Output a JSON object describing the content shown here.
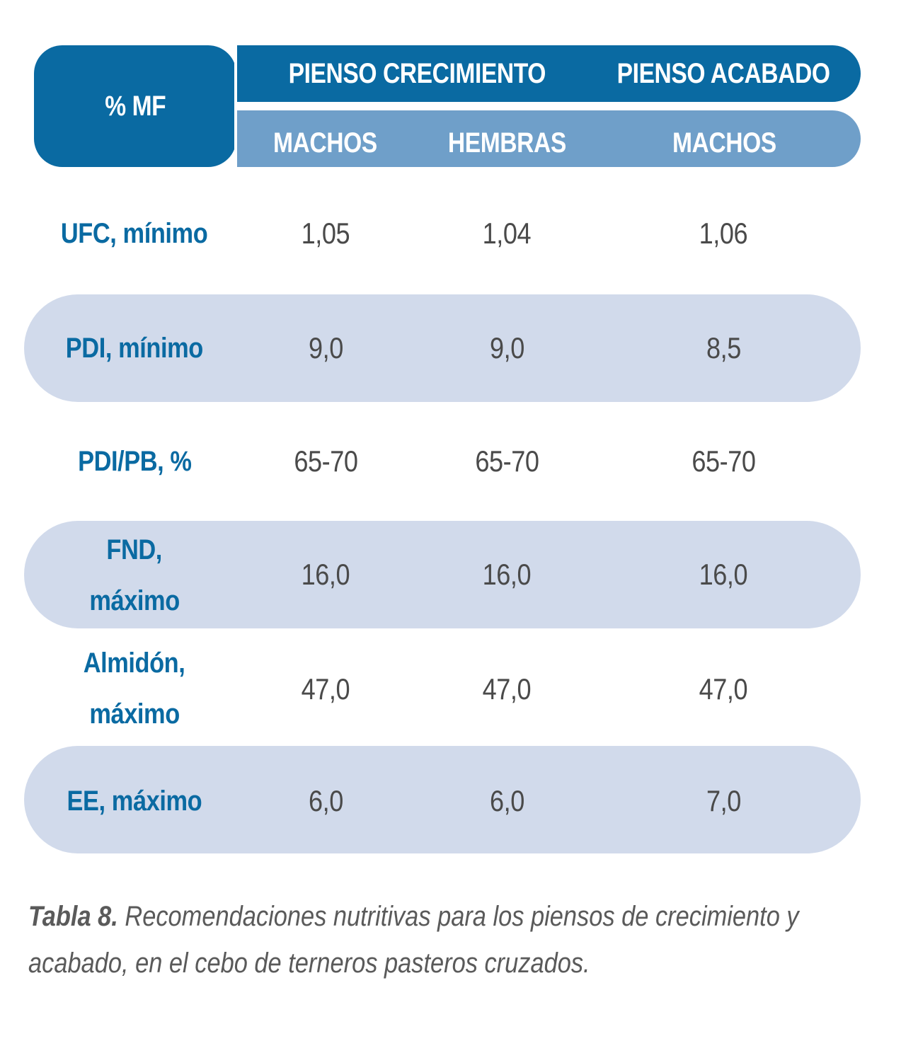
{
  "header": {
    "corner_label": "% MF",
    "groups": [
      "PIENSO CRECIMIENTO",
      "PIENSO ACABADO"
    ],
    "subheaders": [
      "MACHOS",
      "HEMBRAS",
      "MACHOS"
    ]
  },
  "rows": [
    {
      "label": "UFC, mínimo",
      "values": [
        "1,05",
        "1,04",
        "1,06"
      ]
    },
    {
      "label": "PDI, mínimo",
      "values": [
        "9,0",
        "9,0",
        "8,5"
      ]
    },
    {
      "label": "PDI/PB, %",
      "values": [
        "65-70",
        "65-70",
        "65-70"
      ]
    },
    {
      "label_line1": "FND,",
      "label_line2": "máximo",
      "values": [
        "16,0",
        "16,0",
        "16,0"
      ]
    },
    {
      "label_line1": "Almidón,",
      "label_line2": "máximo",
      "values": [
        "47,0",
        "47,0",
        "47,0"
      ]
    },
    {
      "label": "EE, máximo",
      "values": [
        "6,0",
        "6,0",
        "7,0"
      ]
    }
  ],
  "caption": {
    "bold": "Tabla 8.",
    "text": " Recomendaciones nutritivas para los piensos de crecimiento y acabado, en el cebo de terneros pasteros cruzados."
  },
  "colors": {
    "header_dark": "#0a6aa2",
    "header_light": "#6f9fc9",
    "row_band": "#d1daeb",
    "label_text": "#0a6aa2",
    "value_text": "#4a4a4a",
    "caption_text": "#5a5a5a"
  }
}
